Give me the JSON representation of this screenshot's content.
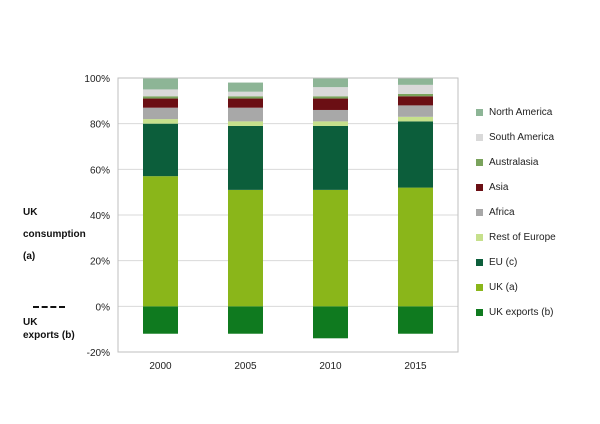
{
  "labels": {
    "consumption_l1": "UK",
    "consumption_l2": "consumption",
    "consumption_l3": "(a)",
    "exports_l1": "UK",
    "exports_l2": "exports (b)"
  },
  "chart_data": {
    "type": "bar",
    "stacked": true,
    "title": "",
    "xlabel": "",
    "ylabel": "",
    "ylim": [
      -20,
      100
    ],
    "ytick_step": 20,
    "ytick_suffix": "%",
    "grid": true,
    "legend_position": "right",
    "categories": [
      "2000",
      "2005",
      "2010",
      "2015"
    ],
    "series": [
      {
        "name": "UK exports (b)",
        "color": "#0f7a1f",
        "values": [
          -12,
          -12,
          -14,
          -12
        ]
      },
      {
        "name": "UK (a)",
        "color": "#8ab61a",
        "values": [
          57,
          51,
          51,
          52
        ]
      },
      {
        "name": "EU (c)",
        "color": "#0c5e3b",
        "values": [
          23,
          28,
          28,
          29
        ]
      },
      {
        "name": "Rest of Europe",
        "color": "#c6e08c",
        "values": [
          2,
          2,
          2,
          2
        ]
      },
      {
        "name": "Africa",
        "color": "#a8a8a8",
        "values": [
          5,
          6,
          5,
          5
        ]
      },
      {
        "name": "Asia",
        "color": "#6b0f14",
        "values": [
          4,
          4,
          5,
          4
        ]
      },
      {
        "name": "Australasia",
        "color": "#7aa35c",
        "values": [
          1,
          1,
          1,
          1
        ]
      },
      {
        "name": "South America",
        "color": "#d9d9d9",
        "values": [
          3,
          2,
          4,
          4
        ]
      },
      {
        "name": "North America",
        "color": "#8db596",
        "values": [
          5,
          4,
          4,
          3
        ]
      }
    ]
  }
}
